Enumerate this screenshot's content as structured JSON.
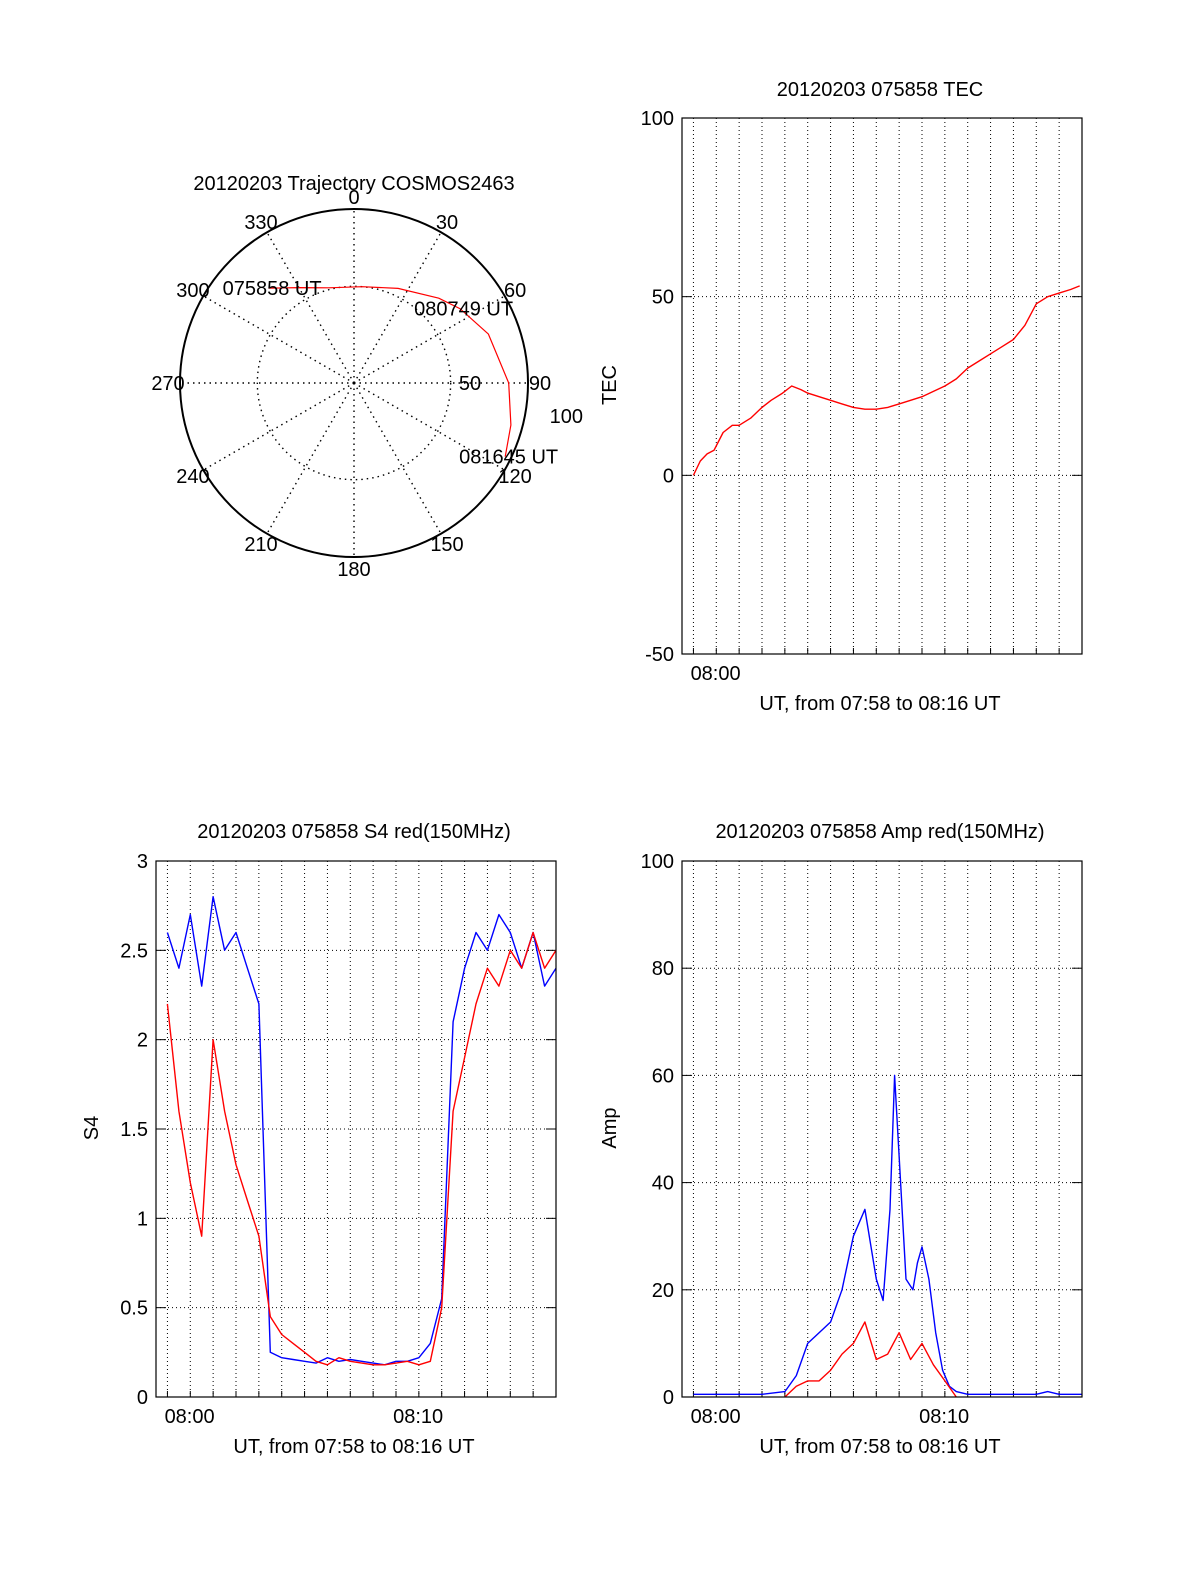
{
  "colors": {
    "red": "#ff0000",
    "blue": "#0000ff",
    "axis": "#000000",
    "grid": "#000000"
  },
  "chart_data": [
    {
      "type": "polar",
      "title": "20120203 Trajectory COSMOS2463",
      "angle_labels": [
        "0",
        "30",
        "60",
        "90",
        "120",
        "150",
        "180",
        "210",
        "240",
        "270",
        "300",
        "330"
      ],
      "radial_labels": [
        "50",
        "100"
      ],
      "series": [
        {
          "color": "red",
          "points": [
            {
              "azimuth": 318,
              "zenith": 66
            },
            {
              "azimuth": 330,
              "zenith": 57
            },
            {
              "azimuth": 345,
              "zenith": 51
            },
            {
              "azimuth": 5,
              "zenith": 50
            },
            {
              "azimuth": 25,
              "zenith": 54
            },
            {
              "azimuth": 45,
              "zenith": 62
            },
            {
              "azimuth": 55,
              "zenith": 67
            },
            {
              "azimuth": 70,
              "zenith": 74
            },
            {
              "azimuth": 90,
              "zenith": 80
            },
            {
              "azimuth": 105,
              "zenith": 84
            },
            {
              "azimuth": 116,
              "zenith": 87
            }
          ]
        }
      ],
      "annotations": [
        {
          "text": "075858 UT",
          "azimuth": 318,
          "zenith": 66
        },
        {
          "text": "080749 UT",
          "azimuth": 55,
          "zenith": 67
        },
        {
          "text": "081645 UT",
          "azimuth": 116,
          "zenith": 87
        }
      ]
    },
    {
      "type": "line",
      "title": "20120203 075858 TEC",
      "ylabel": "TEC",
      "xlabel": "UT, from 07:58 to 08:16 UT",
      "x_tick_labels": [
        {
          "value": 0.97,
          "label": "08:00"
        }
      ],
      "xlim": [
        -0.5,
        17.0
      ],
      "ylim": [
        -50,
        100
      ],
      "y_ticks": [
        -50,
        0,
        50,
        100
      ],
      "grid": true,
      "series": [
        {
          "color": "red",
          "x": [
            0.0,
            0.3,
            0.6,
            0.9,
            1.3,
            1.7,
            2.0,
            2.5,
            3.0,
            3.4,
            3.9,
            4.3,
            4.7,
            5.0,
            5.5,
            6.0,
            6.5,
            7.0,
            7.5,
            8.0,
            8.5,
            9.0,
            9.5,
            10.0,
            10.5,
            11.0,
            11.5,
            12.0,
            12.5,
            13.0,
            13.5,
            14.0,
            14.5,
            15.0,
            15.5,
            16.0,
            16.5,
            16.9
          ],
          "y": [
            0,
            4,
            6,
            7,
            12,
            14,
            14,
            16,
            19,
            21,
            23,
            25,
            24,
            23,
            22,
            21,
            20,
            19,
            18.5,
            18.5,
            19,
            20,
            21,
            22,
            23.5,
            25,
            27,
            30,
            32,
            34,
            36,
            38,
            42,
            48,
            50,
            51,
            52,
            53
          ]
        }
      ]
    },
    {
      "type": "line",
      "title": "20120203 075858 S4 red(150MHz)",
      "ylabel": "S4",
      "xlabel": "UT, from 07:58 to 08:16 UT",
      "x_tick_labels": [
        {
          "value": 0.97,
          "label": "08:00"
        },
        {
          "value": 10.97,
          "label": "08:10"
        }
      ],
      "xlim": [
        -0.5,
        17.0
      ],
      "ylim": [
        0,
        3
      ],
      "y_ticks": [
        0,
        0.5,
        1,
        1.5,
        2,
        2.5,
        3
      ],
      "grid": true,
      "series": [
        {
          "color": "blue",
          "x": [
            0.0,
            0.5,
            1.0,
            1.5,
            2.0,
            2.5,
            3.0,
            3.5,
            4.0,
            4.5,
            5.0,
            5.5,
            6.0,
            6.5,
            7.0,
            7.5,
            8.0,
            8.5,
            9.0,
            9.5,
            10.0,
            10.5,
            11.0,
            11.5,
            12.0,
            12.5,
            13.0,
            13.5,
            14.0,
            14.5,
            15.0,
            15.5,
            16.0,
            16.5,
            17.0
          ],
          "y": [
            2.6,
            2.4,
            2.7,
            2.3,
            2.8,
            2.5,
            2.6,
            2.4,
            2.2,
            0.25,
            0.22,
            0.21,
            0.2,
            0.19,
            0.22,
            0.2,
            0.21,
            0.2,
            0.19,
            0.18,
            0.2,
            0.2,
            0.22,
            0.3,
            0.55,
            2.1,
            2.4,
            2.6,
            2.5,
            2.7,
            2.6,
            2.4,
            2.6,
            2.3,
            2.4
          ]
        },
        {
          "color": "red",
          "x": [
            0.0,
            0.5,
            1.0,
            1.5,
            2.0,
            2.5,
            3.0,
            3.5,
            4.0,
            4.5,
            5.0,
            5.5,
            6.0,
            6.5,
            7.0,
            7.5,
            8.0,
            8.5,
            9.0,
            9.5,
            10.0,
            10.5,
            11.0,
            11.5,
            12.0,
            12.5,
            13.0,
            13.5,
            14.0,
            14.5,
            15.0,
            15.5,
            16.0,
            16.5,
            17.0
          ],
          "y": [
            2.2,
            1.6,
            1.2,
            0.9,
            2.0,
            1.6,
            1.3,
            1.1,
            0.9,
            0.45,
            0.35,
            0.3,
            0.25,
            0.2,
            0.18,
            0.22,
            0.2,
            0.19,
            0.18,
            0.18,
            0.19,
            0.2,
            0.18,
            0.2,
            0.5,
            1.6,
            1.9,
            2.2,
            2.4,
            2.3,
            2.5,
            2.4,
            2.6,
            2.4,
            2.5
          ]
        }
      ]
    },
    {
      "type": "line",
      "title": "20120203 075858 Amp red(150MHz)",
      "ylabel": "Amp",
      "xlabel": "UT, from 07:58 to 08:16 UT",
      "x_tick_labels": [
        {
          "value": 0.97,
          "label": "08:00"
        },
        {
          "value": 10.97,
          "label": "08:10"
        }
      ],
      "xlim": [
        -0.5,
        17.0
      ],
      "ylim": [
        0,
        100
      ],
      "y_ticks": [
        0,
        20,
        40,
        60,
        80,
        100
      ],
      "grid": true,
      "series": [
        {
          "color": "blue",
          "x": [
            0.0,
            1.0,
            2.0,
            3.0,
            4.0,
            4.5,
            5.0,
            5.5,
            6.0,
            6.5,
            7.0,
            7.5,
            8.0,
            8.3,
            8.6,
            8.8,
            9.0,
            9.3,
            9.6,
            9.8,
            10.0,
            10.3,
            10.6,
            10.9,
            11.2,
            11.5,
            12.0,
            13.0,
            14.0,
            15.0,
            15.5,
            16.0,
            17.0
          ],
          "y": [
            0.5,
            0.5,
            0.5,
            0.5,
            1.0,
            4.0,
            10.0,
            12.0,
            14.0,
            20.0,
            30.0,
            35.0,
            22.0,
            18.0,
            35.0,
            60.0,
            45.0,
            22.0,
            20.0,
            25.0,
            28.0,
            22.0,
            12.0,
            5.0,
            2.0,
            1.0,
            0.5,
            0.5,
            0.5,
            0.5,
            1.0,
            0.5,
            0.5
          ]
        },
        {
          "color": "red",
          "x": [
            4.0,
            4.5,
            5.0,
            5.5,
            6.0,
            6.5,
            7.0,
            7.5,
            8.0,
            8.5,
            9.0,
            9.5,
            10.0,
            10.5,
            11.0,
            11.5
          ],
          "y": [
            0.0,
            2.0,
            3.0,
            3.0,
            5.0,
            8.0,
            10.0,
            14.0,
            7.0,
            8.0,
            12.0,
            7.0,
            10.0,
            6.0,
            3.0,
            0.0
          ]
        }
      ]
    }
  ]
}
